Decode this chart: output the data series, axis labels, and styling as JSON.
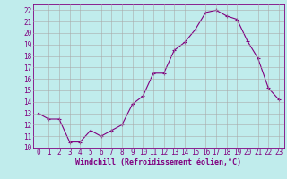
{
  "x": [
    0,
    1,
    2,
    3,
    4,
    5,
    6,
    7,
    8,
    9,
    10,
    11,
    12,
    13,
    14,
    15,
    16,
    17,
    18,
    19,
    20,
    21,
    22,
    23
  ],
  "y": [
    13.0,
    12.5,
    12.5,
    10.5,
    10.5,
    11.5,
    11.0,
    11.5,
    12.0,
    13.8,
    14.5,
    16.5,
    16.5,
    18.5,
    19.2,
    20.3,
    21.8,
    22.0,
    21.5,
    21.2,
    19.3,
    17.8,
    15.2,
    14.2
  ],
  "xlim": [
    -0.5,
    23.5
  ],
  "ylim": [
    10,
    22.5
  ],
  "xticks": [
    0,
    1,
    2,
    3,
    4,
    5,
    6,
    7,
    8,
    9,
    10,
    11,
    12,
    13,
    14,
    15,
    16,
    17,
    18,
    19,
    20,
    21,
    22,
    23
  ],
  "yticks": [
    10,
    11,
    12,
    13,
    14,
    15,
    16,
    17,
    18,
    19,
    20,
    21,
    22
  ],
  "xlabel": "Windchill (Refroidissement éolien,°C)",
  "line_color": "#800080",
  "marker": "+",
  "bg_color": "#c0ecec",
  "grid_color": "#aaaaaa",
  "font_color": "#800080",
  "font_family": "monospace",
  "font_size_tick": 5.5,
  "font_size_label": 6.0,
  "marker_size": 3,
  "line_width": 0.8
}
